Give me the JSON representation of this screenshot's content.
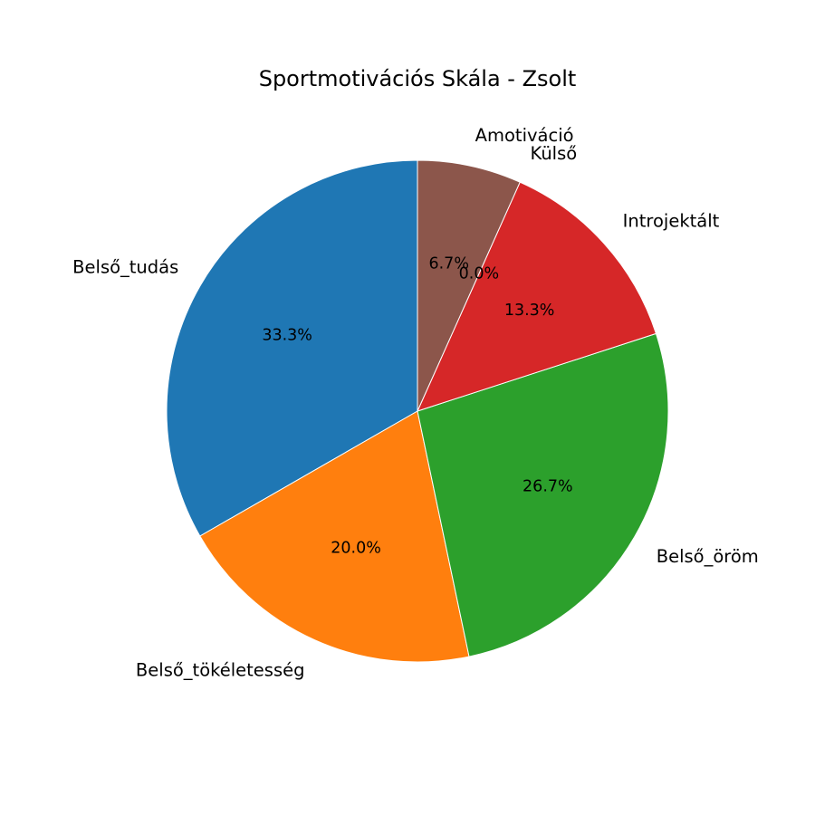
{
  "chart_data": {
    "type": "pie",
    "title": "Sportmotivációs Skála - Zsolt",
    "slices": [
      {
        "label": "Belső_tudás",
        "value": 33.3,
        "pct_label": "33.3%",
        "color": "#1f77b4"
      },
      {
        "label": "Belső_tökéletesség",
        "value": 20.0,
        "pct_label": "20.0%",
        "color": "#ff7f0e"
      },
      {
        "label": "Belső_öröm",
        "value": 26.7,
        "pct_label": "26.7%",
        "color": "#2ca02c"
      },
      {
        "label": "Introjektált",
        "value": 13.3,
        "pct_label": "13.3%",
        "color": "#d62728"
      },
      {
        "label": "Külső",
        "value": 0.0,
        "pct_label": "0.0%",
        "color": "#9467bd"
      },
      {
        "label": "Amotiváció",
        "value": 6.7,
        "pct_label": "6.7%",
        "color": "#8c564b"
      }
    ],
    "start_angle": "top",
    "direction": "counterclockwise",
    "legend": "none"
  }
}
